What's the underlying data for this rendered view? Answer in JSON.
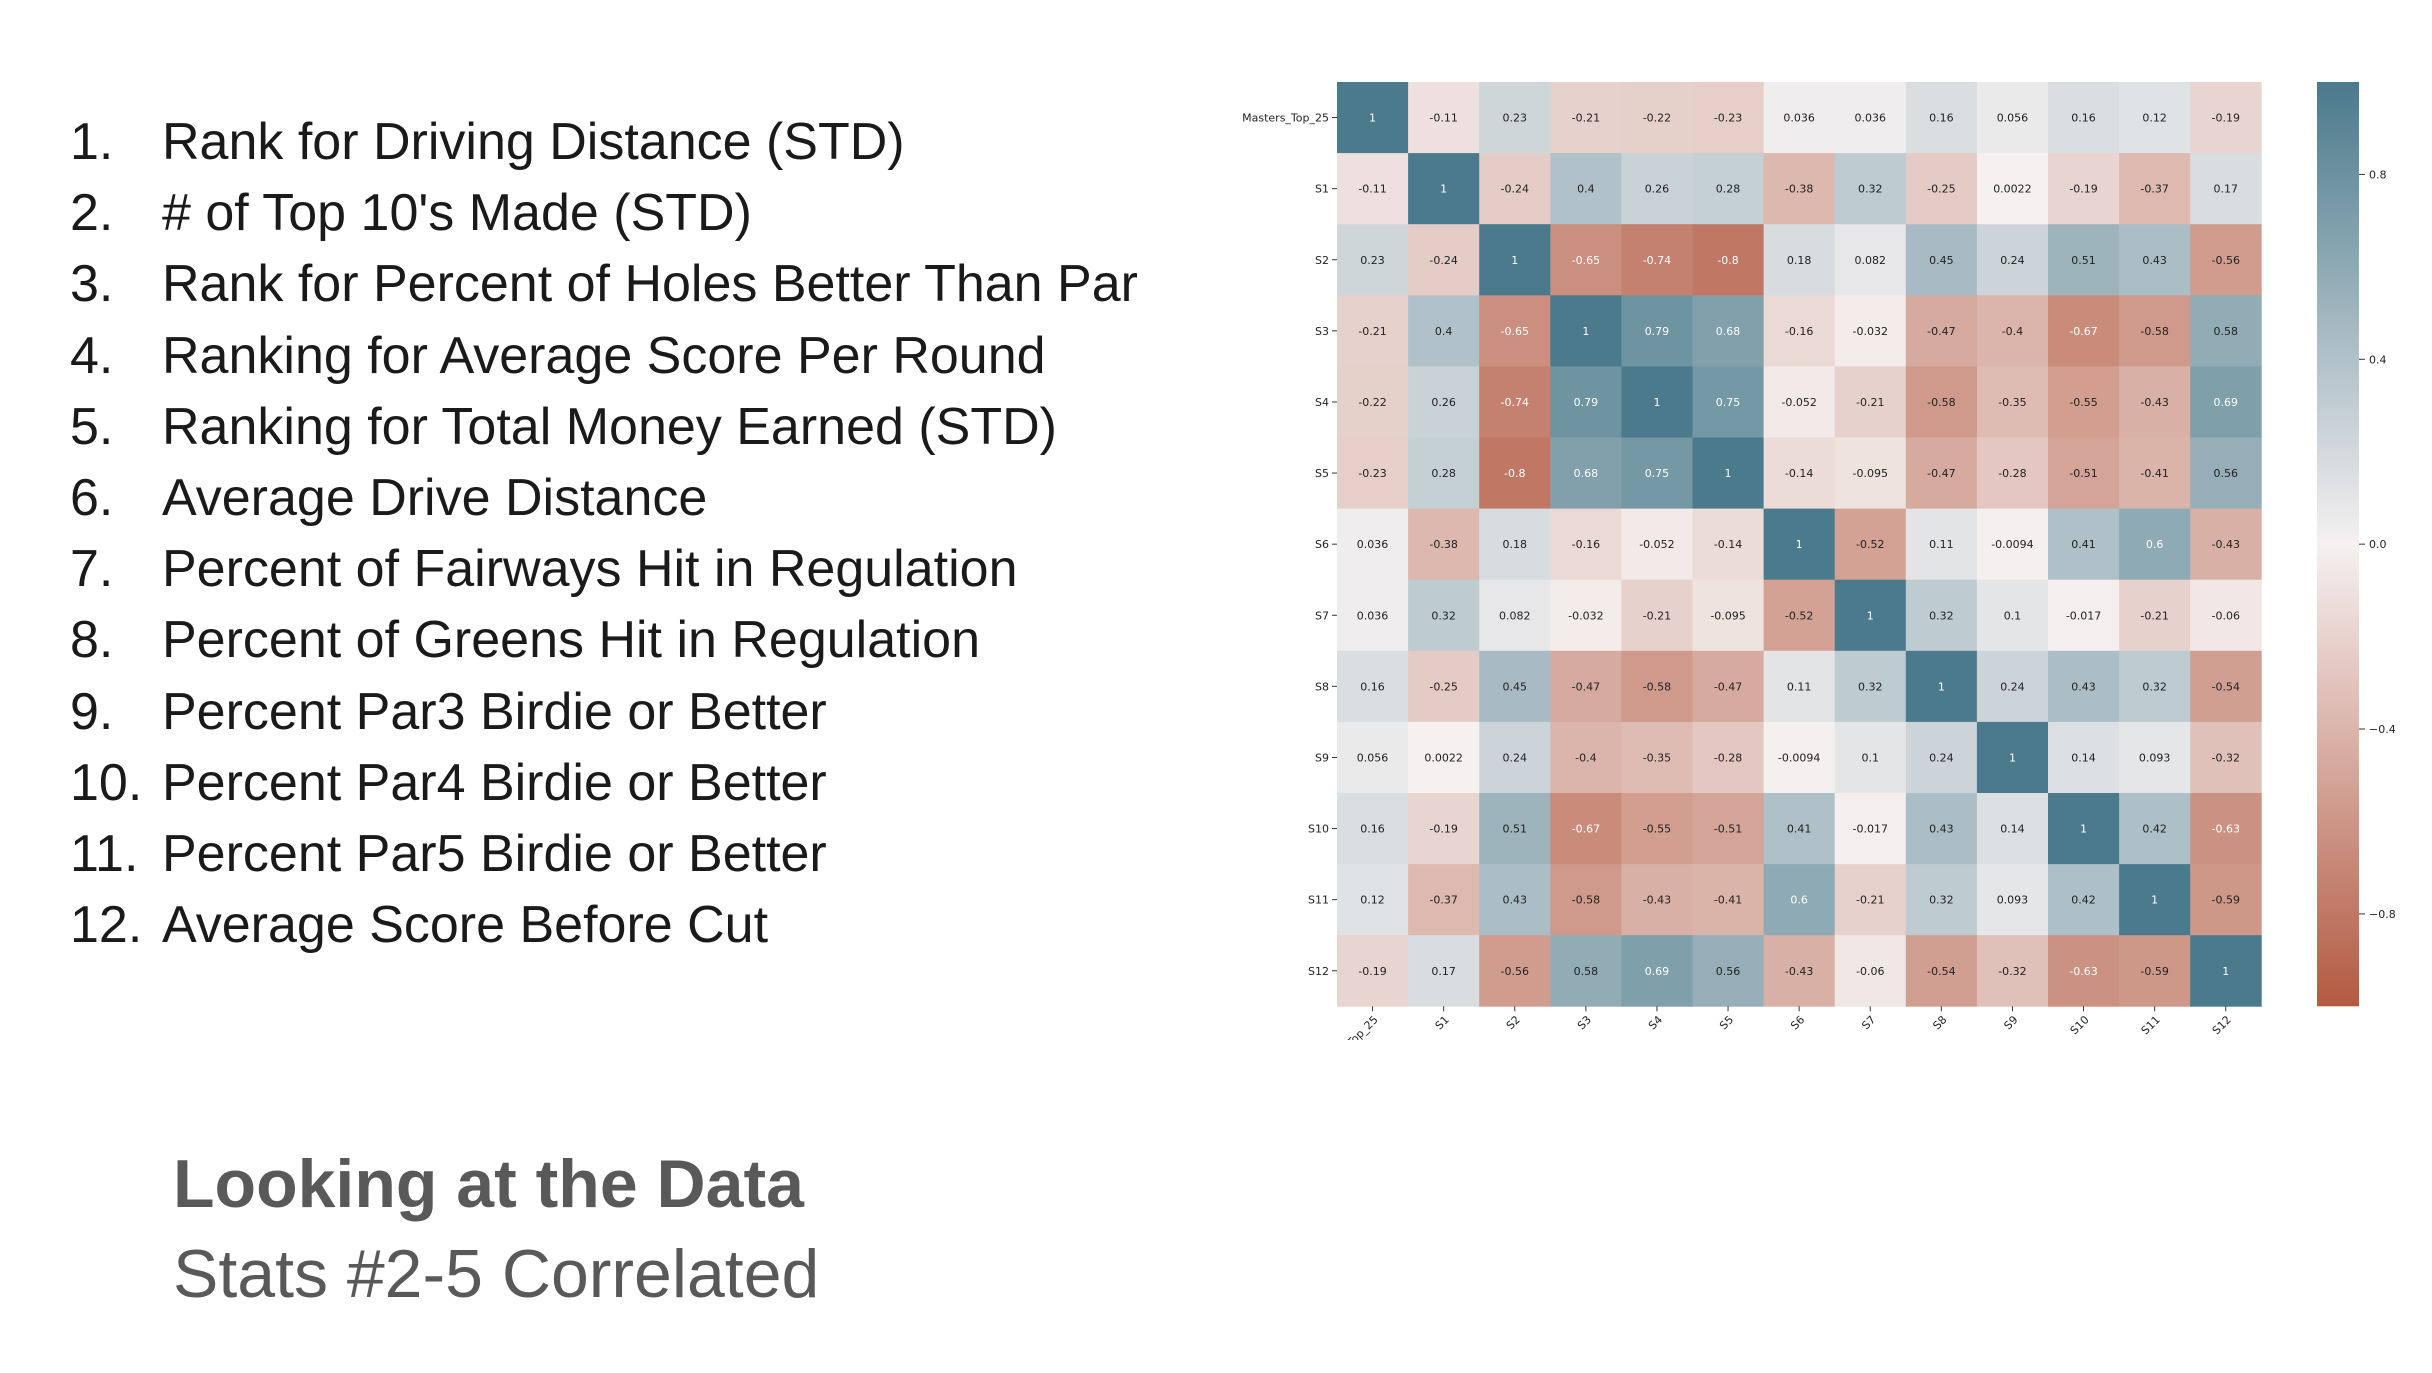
{
  "slide": {
    "title": "Looking at the Data",
    "subtitle": "Stats #2-5 Correlated"
  },
  "stats": [
    {
      "num": "1.",
      "label": "Rank for Driving Distance (STD)"
    },
    {
      "num": "2.",
      "label": "# of Top 10's Made (STD)"
    },
    {
      "num": "3.",
      "label": "Rank for Percent of Holes Better Than Par"
    },
    {
      "num": "4.",
      "label": "Ranking for Average Score Per Round"
    },
    {
      "num": "5.",
      "label": "Ranking for Total Money Earned (STD)"
    },
    {
      "num": "6.",
      "label": "Average Drive Distance"
    },
    {
      "num": "7.",
      "label": "Percent of Fairways Hit in Regulation"
    },
    {
      "num": "8.",
      "label": "Percent of Greens Hit in Regulation"
    },
    {
      "num": "9.",
      "label": "Percent Par3 Birdie or Better"
    },
    {
      "num": "10.",
      "label": "Percent Par4 Birdie or Better"
    },
    {
      "num": "11.",
      "label": "Percent Par5 Birdie or Better"
    },
    {
      "num": "12.",
      "label": "Average Score Before Cut"
    }
  ],
  "colors": {
    "negative": "#b35a41",
    "neutral": "#f5f1f1",
    "positive": "#4a7a8c"
  },
  "chart_data": {
    "type": "heatmap",
    "labels": [
      "Masters_Top_25",
      "S1",
      "S2",
      "S3",
      "S4",
      "S5",
      "S6",
      "S7",
      "S8",
      "S9",
      "S10",
      "S11",
      "S12"
    ],
    "value_labels": [
      [
        "1",
        "-0.11",
        "0.23",
        "-0.21",
        "-0.22",
        "-0.23",
        "0.036",
        "0.036",
        "0.16",
        "0.056",
        "0.16",
        "0.12",
        "-0.19"
      ],
      [
        "-0.11",
        "1",
        "-0.24",
        "0.4",
        "0.26",
        "0.28",
        "-0.38",
        "0.32",
        "-0.25",
        "0.0022",
        "-0.19",
        "-0.37",
        "0.17"
      ],
      [
        "0.23",
        "-0.24",
        "1",
        "-0.65",
        "-0.74",
        "-0.8",
        "0.18",
        "0.082",
        "0.45",
        "0.24",
        "0.51",
        "0.43",
        "-0.56"
      ],
      [
        "-0.21",
        "0.4",
        "-0.65",
        "1",
        "0.79",
        "0.68",
        "-0.16",
        "-0.032",
        "-0.47",
        "-0.4",
        "-0.67",
        "-0.58",
        "0.58"
      ],
      [
        "-0.22",
        "0.26",
        "-0.74",
        "0.79",
        "1",
        "0.75",
        "-0.052",
        "-0.21",
        "-0.58",
        "-0.35",
        "-0.55",
        "-0.43",
        "0.69"
      ],
      [
        "-0.23",
        "0.28",
        "-0.8",
        "0.68",
        "0.75",
        "1",
        "-0.14",
        "-0.095",
        "-0.47",
        "-0.28",
        "-0.51",
        "-0.41",
        "0.56"
      ],
      [
        "0.036",
        "-0.38",
        "0.18",
        "-0.16",
        "-0.052",
        "-0.14",
        "1",
        "-0.52",
        "0.11",
        "-0.0094",
        "0.41",
        "0.6",
        "-0.43"
      ],
      [
        "0.036",
        "0.32",
        "0.082",
        "-0.032",
        "-0.21",
        "-0.095",
        "-0.52",
        "1",
        "0.32",
        "0.1",
        "-0.017",
        "-0.21",
        "-0.06"
      ],
      [
        "0.16",
        "-0.25",
        "0.45",
        "-0.47",
        "-0.58",
        "-0.47",
        "0.11",
        "0.32",
        "1",
        "0.24",
        "0.43",
        "0.32",
        "-0.54"
      ],
      [
        "0.056",
        "0.0022",
        "0.24",
        "-0.4",
        "-0.35",
        "-0.28",
        "-0.0094",
        "0.1",
        "0.24",
        "1",
        "0.14",
        "0.093",
        "-0.32"
      ],
      [
        "0.16",
        "-0.19",
        "0.51",
        "-0.67",
        "-0.55",
        "-0.51",
        "0.41",
        "-0.017",
        "0.43",
        "0.14",
        "1",
        "0.42",
        "-0.63"
      ],
      [
        "0.12",
        "-0.37",
        "0.43",
        "-0.58",
        "-0.43",
        "-0.41",
        "0.6",
        "-0.21",
        "0.32",
        "0.093",
        "0.42",
        "1",
        "-0.59"
      ],
      [
        "-0.19",
        "0.17",
        "-0.56",
        "0.58",
        "0.69",
        "0.56",
        "-0.43",
        "-0.06",
        "-0.54",
        "-0.32",
        "-0.63",
        "-0.59",
        "1"
      ]
    ],
    "colorbar_ticks": [
      "0.8",
      "0.4",
      "0.0",
      "−0.4",
      "−0.8"
    ],
    "vmin": -1,
    "vmax": 1
  }
}
